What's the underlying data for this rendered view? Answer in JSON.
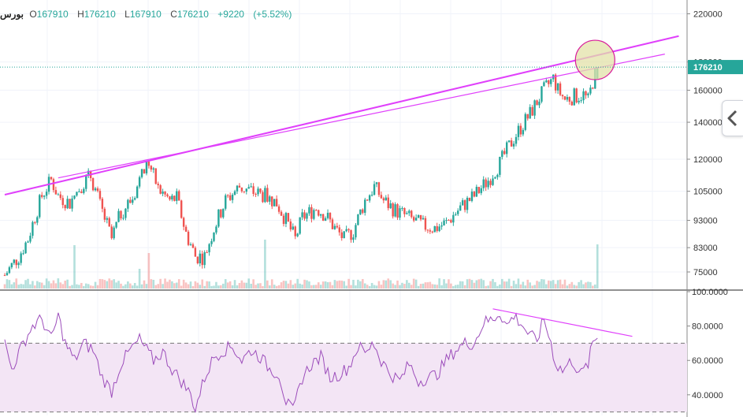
{
  "symbol": "بورس",
  "ohlc": {
    "open_label": "O",
    "open": "167910",
    "high_label": "H",
    "high": "176210",
    "low_label": "L",
    "low": "167910",
    "close_label": "C",
    "close": "176210",
    "change": "+9220",
    "change_pct": "(+5.52%)"
  },
  "colors": {
    "up": "#26a69a",
    "down": "#ef5350",
    "trendline": "#e040fb",
    "rsi_line": "#9c4dbb",
    "rsi_band": "#f3e5f5",
    "highlight_circle": "#e3e2a8",
    "last_price_bg": "#26a69a"
  },
  "icons": {
    "scroll_button": "chevron-left-icon"
  },
  "last_price_label": "176210",
  "chart_data": [
    {
      "type": "candlestick",
      "panel": "price",
      "y_scale": "log",
      "y_ticks": [
        "220000",
        "180000",
        "160000",
        "140000",
        "120000",
        "105000",
        "93000",
        "83000",
        "75000"
      ],
      "y_tick_values": [
        220000,
        180000,
        160000,
        140000,
        120000,
        105000,
        93000,
        83000,
        75000
      ],
      "ylim": [
        70000,
        230000
      ],
      "anchors": [
        [
          0,
          74000
        ],
        [
          6,
          80000
        ],
        [
          10,
          86000
        ],
        [
          16,
          103000
        ],
        [
          20,
          110000
        ],
        [
          23,
          103000
        ],
        [
          28,
          100000
        ],
        [
          33,
          108000
        ],
        [
          37,
          112000
        ],
        [
          41,
          99000
        ],
        [
          46,
          86000
        ],
        [
          50,
          96000
        ],
        [
          55,
          102000
        ],
        [
          59,
          112000
        ],
        [
          62,
          118000
        ],
        [
          66,
          106000
        ],
        [
          71,
          101000
        ],
        [
          74,
          102000
        ],
        [
          78,
          88000
        ],
        [
          82,
          80000
        ],
        [
          86,
          80000
        ],
        [
          90,
          90000
        ],
        [
          95,
          101000
        ],
        [
          101,
          107000
        ],
        [
          106,
          105000
        ],
        [
          112,
          103000
        ],
        [
          117,
          100000
        ],
        [
          121,
          93000
        ],
        [
          125,
          86000
        ],
        [
          128,
          94000
        ],
        [
          134,
          98000
        ],
        [
          138,
          95000
        ],
        [
          142,
          90000
        ],
        [
          146,
          86000
        ],
        [
          150,
          89000
        ],
        [
          155,
          101000
        ],
        [
          159,
          107000
        ],
        [
          163,
          101000
        ],
        [
          168,
          97000
        ],
        [
          174,
          94000
        ],
        [
          180,
          91000
        ],
        [
          185,
          90000
        ],
        [
          190,
          92000
        ],
        [
          196,
          98000
        ],
        [
          202,
          103000
        ],
        [
          208,
          110000
        ],
        [
          213,
          118000
        ],
        [
          219,
          131000
        ],
        [
          226,
          145000
        ],
        [
          232,
          160000
        ],
        [
          236,
          168000
        ],
        [
          238,
          160000
        ],
        [
          241,
          154000
        ],
        [
          245,
          156000
        ],
        [
          249,
          157000
        ],
        [
          251,
          153000
        ],
        [
          253,
          166000
        ],
        [
          255,
          176000
        ]
      ],
      "last": {
        "open": 167910,
        "high": 176210,
        "low": 167910,
        "close": 176210
      },
      "trendlines": [
        {
          "from": [
            0,
            103500
          ],
          "to": [
            290,
            200500
          ]
        },
        {
          "from": [
            23,
            111000
          ],
          "to": [
            284,
            186000
          ]
        }
      ],
      "highlight": {
        "at_bar": 254,
        "price": 181500
      }
    },
    {
      "type": "line",
      "panel": "rsi",
      "y_ticks": [
        "100.0000",
        "80.0000",
        "60.0000",
        "40.0000"
      ],
      "y_tick_values": [
        100,
        80,
        60,
        40
      ],
      "ylim": [
        28,
        100
      ],
      "band": [
        30,
        70
      ],
      "anchors": [
        [
          0,
          70
        ],
        [
          3,
          55
        ],
        [
          8,
          70
        ],
        [
          12,
          80
        ],
        [
          16,
          84
        ],
        [
          20,
          72
        ],
        [
          23,
          86
        ],
        [
          26,
          70
        ],
        [
          30,
          60
        ],
        [
          34,
          70
        ],
        [
          38,
          66
        ],
        [
          42,
          50
        ],
        [
          46,
          42
        ],
        [
          50,
          58
        ],
        [
          54,
          66
        ],
        [
          58,
          72
        ],
        [
          61,
          66
        ],
        [
          64,
          60
        ],
        [
          68,
          65
        ],
        [
          72,
          55
        ],
        [
          76,
          48
        ],
        [
          80,
          40
        ],
        [
          82,
          32
        ],
        [
          86,
          50
        ],
        [
          90,
          62
        ],
        [
          94,
          66
        ],
        [
          98,
          68
        ],
        [
          102,
          60
        ],
        [
          106,
          66
        ],
        [
          110,
          62
        ],
        [
          114,
          55
        ],
        [
          118,
          52
        ],
        [
          121,
          36
        ],
        [
          124,
          30
        ],
        [
          128,
          50
        ],
        [
          132,
          58
        ],
        [
          136,
          62
        ],
        [
          140,
          50
        ],
        [
          144,
          52
        ],
        [
          148,
          56
        ],
        [
          152,
          68
        ],
        [
          156,
          64
        ],
        [
          158,
          72
        ],
        [
          162,
          60
        ],
        [
          166,
          52
        ],
        [
          170,
          48
        ],
        [
          174,
          58
        ],
        [
          178,
          48
        ],
        [
          182,
          50
        ],
        [
          186,
          52
        ],
        [
          190,
          60
        ],
        [
          194,
          66
        ],
        [
          198,
          70
        ],
        [
          202,
          70
        ],
        [
          206,
          82
        ],
        [
          210,
          84
        ],
        [
          213,
          88
        ],
        [
          216,
          80
        ],
        [
          219,
          86
        ],
        [
          222,
          82
        ],
        [
          226,
          74
        ],
        [
          229,
          72
        ],
        [
          232,
          84
        ],
        [
          235,
          70
        ],
        [
          237,
          58
        ],
        [
          240,
          54
        ],
        [
          244,
          60
        ],
        [
          248,
          52
        ],
        [
          251,
          58
        ],
        [
          253,
          70
        ],
        [
          255,
          74
        ]
      ],
      "trendline": {
        "from": [
          210,
          90
        ],
        "to": [
          270,
          74
        ]
      }
    },
    {
      "type": "bar",
      "panel": "volume",
      "spikes": [
        [
          30,
          0.55
        ],
        [
          58,
          0.25
        ],
        [
          62,
          0.45
        ],
        [
          112,
          0.62
        ],
        [
          255,
          0.56
        ]
      ]
    }
  ]
}
